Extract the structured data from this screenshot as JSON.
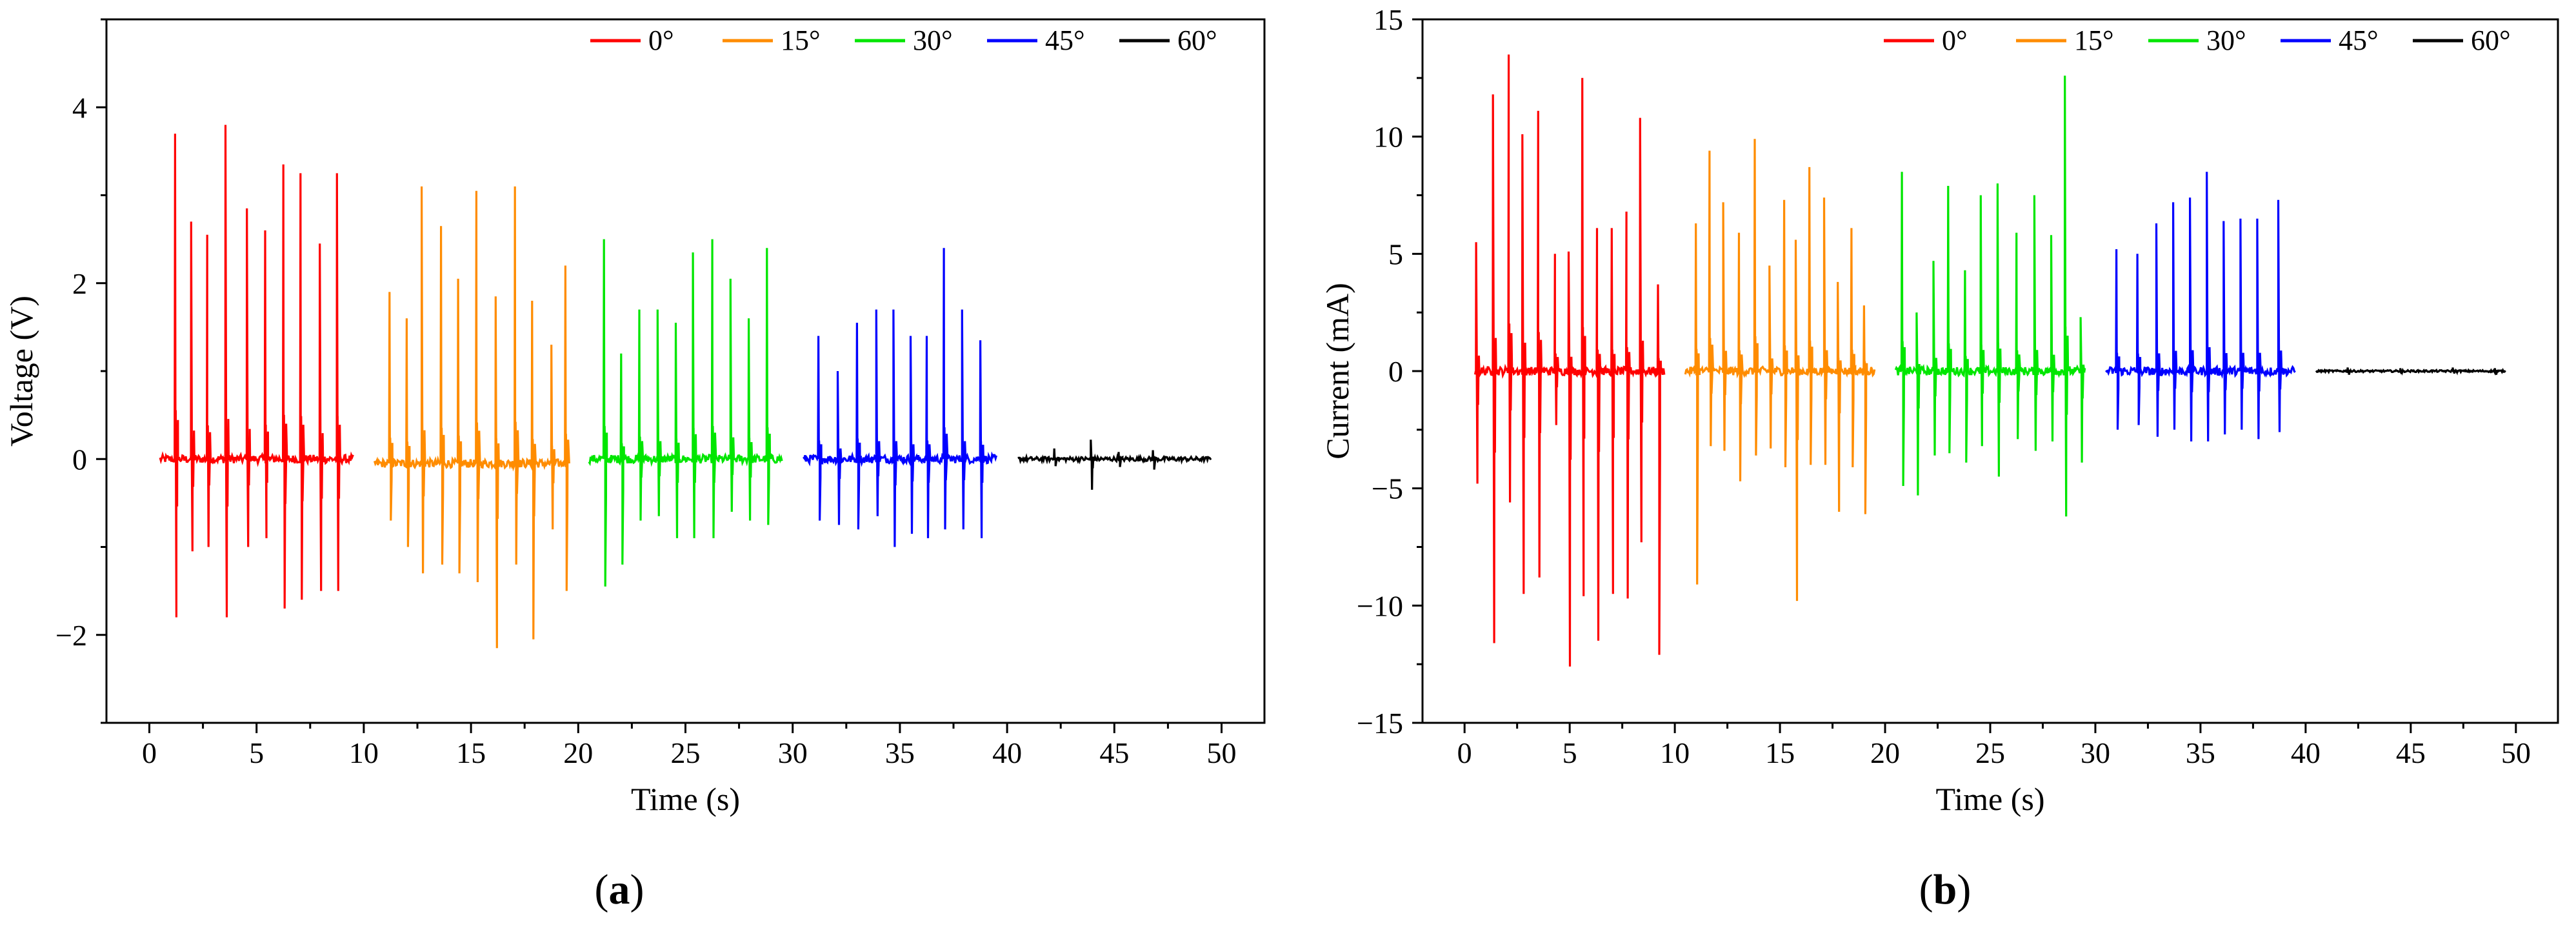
{
  "chart_data": [
    {
      "type": "line",
      "panel_label": "a",
      "caption_open": "(",
      "caption_close": ")",
      "xlabel": "Time (s)",
      "ylabel": "Voltage (V)",
      "xlim": [
        -2,
        52
      ],
      "ylim": [
        -3,
        5
      ],
      "xticks": [
        0,
        5,
        10,
        15,
        20,
        25,
        30,
        35,
        40,
        45,
        50
      ],
      "yticks": [
        -2,
        0,
        2,
        4
      ],
      "ytick_labels": [
        "−2",
        "0",
        "2",
        "4"
      ],
      "legend_position": "top-right",
      "series": [
        {
          "name": "0°",
          "color": "#ff0000",
          "t_start": 0.5,
          "t_end": 9.5,
          "baseline": 0.0,
          "spikes": [
            [
              1.2,
              3.7,
              -1.8
            ],
            [
              1.95,
              2.7,
              -1.05
            ],
            [
              2.7,
              2.55,
              -1.0
            ],
            [
              3.55,
              3.8,
              -1.8
            ],
            [
              4.55,
              2.85,
              -1.0
            ],
            [
              5.4,
              2.6,
              -0.9
            ],
            [
              6.25,
              3.35,
              -1.7
            ],
            [
              7.05,
              3.25,
              -1.6
            ],
            [
              7.95,
              2.45,
              -1.5
            ],
            [
              8.75,
              3.25,
              -1.5
            ]
          ]
        },
        {
          "name": "15°",
          "color": "#ff8c00",
          "t_start": 10.5,
          "t_end": 19.5,
          "baseline": -0.05,
          "spikes": [
            [
              11.2,
              1.9,
              -0.7
            ],
            [
              12.0,
              1.6,
              -1.0
            ],
            [
              12.7,
              3.1,
              -1.3
            ],
            [
              13.6,
              2.65,
              -1.2
            ],
            [
              14.4,
              2.05,
              -1.3
            ],
            [
              15.25,
              3.05,
              -1.4
            ],
            [
              16.15,
              1.85,
              -2.15
            ],
            [
              17.05,
              3.1,
              -1.2
            ],
            [
              17.85,
              1.8,
              -2.05
            ],
            [
              18.75,
              1.3,
              -0.8
            ],
            [
              19.4,
              2.2,
              -1.5
            ]
          ]
        },
        {
          "name": "30°",
          "color": "#00e600",
          "t_start": 20.5,
          "t_end": 29.5,
          "baseline": 0.0,
          "spikes": [
            [
              21.2,
              2.5,
              -1.45
            ],
            [
              22.0,
              1.2,
              -1.2
            ],
            [
              22.85,
              1.7,
              -0.7
            ],
            [
              23.7,
              1.7,
              -0.65
            ],
            [
              24.55,
              1.55,
              -0.9
            ],
            [
              25.35,
              2.35,
              -0.9
            ],
            [
              26.25,
              2.5,
              -0.9
            ],
            [
              27.1,
              2.05,
              -0.6
            ],
            [
              27.95,
              1.6,
              -0.7
            ],
            [
              28.8,
              2.4,
              -0.75
            ]
          ]
        },
        {
          "name": "45°",
          "color": "#0000ff",
          "t_start": 30.5,
          "t_end": 39.5,
          "baseline": 0.0,
          "spikes": [
            [
              31.2,
              1.4,
              -0.7
            ],
            [
              32.1,
              1.0,
              -0.75
            ],
            [
              33.0,
              1.55,
              -0.8
            ],
            [
              33.9,
              1.7,
              -0.65
            ],
            [
              34.7,
              1.7,
              -1.0
            ],
            [
              35.5,
              1.4,
              -0.85
            ],
            [
              36.25,
              1.4,
              -0.9
            ],
            [
              37.05,
              2.4,
              -0.8
            ],
            [
              37.9,
              1.7,
              -0.8
            ],
            [
              38.75,
              1.35,
              -0.9
            ]
          ]
        },
        {
          "name": "60°",
          "color": "#000000",
          "t_start": 40.5,
          "t_end": 49.5,
          "baseline": 0.0,
          "noise": 0.05,
          "spikes": [
            [
              42.2,
              0.12,
              -0.08
            ],
            [
              43.9,
              0.22,
              -0.35
            ],
            [
              45.2,
              0.08,
              -0.09
            ],
            [
              46.8,
              0.1,
              -0.12
            ]
          ]
        }
      ]
    },
    {
      "type": "line",
      "panel_label": "b",
      "caption_open": "(",
      "caption_close": ")",
      "xlabel": "Time (s)",
      "ylabel": "Current (mA)",
      "xlim": [
        -2,
        52
      ],
      "ylim": [
        -15,
        15
      ],
      "xticks": [
        0,
        5,
        10,
        15,
        20,
        25,
        30,
        35,
        40,
        45,
        50
      ],
      "yticks": [
        -15,
        -10,
        -5,
        0,
        5,
        10,
        15
      ],
      "ytick_labels": [
        "−15",
        "−10",
        "−5",
        "0",
        "5",
        "10",
        "15"
      ],
      "legend_position": "top-right",
      "series": [
        {
          "name": "0°",
          "color": "#ff0000",
          "t_start": 0.5,
          "t_end": 9.5,
          "baseline": 0.0,
          "spikes": [
            [
              0.55,
              5.5,
              -4.8
            ],
            [
              1.35,
              11.8,
              -11.6
            ],
            [
              2.1,
              13.5,
              -5.6
            ],
            [
              2.75,
              10.1,
              -9.5
            ],
            [
              3.5,
              11.1,
              -8.8
            ],
            [
              4.3,
              5.0,
              -2.3
            ],
            [
              4.95,
              5.1,
              -12.6
            ],
            [
              5.6,
              12.5,
              -9.6
            ],
            [
              6.3,
              6.1,
              -11.5
            ],
            [
              7.0,
              6.1,
              -9.5
            ],
            [
              7.7,
              6.8,
              -9.7
            ],
            [
              8.35,
              10.8,
              -7.3
            ],
            [
              9.2,
              3.7,
              -12.1
            ]
          ]
        },
        {
          "name": "15°",
          "color": "#ff8c00",
          "t_start": 10.5,
          "t_end": 19.5,
          "baseline": 0.0,
          "spikes": [
            [
              11.0,
              6.3,
              -9.1
            ],
            [
              11.65,
              9.4,
              -3.2
            ],
            [
              12.3,
              7.2,
              -3.4
            ],
            [
              13.05,
              5.9,
              -4.7
            ],
            [
              13.8,
              9.9,
              -3.6
            ],
            [
              14.5,
              4.5,
              -3.3
            ],
            [
              15.2,
              7.3,
              -4.1
            ],
            [
              15.75,
              5.6,
              -9.8
            ],
            [
              16.4,
              8.7,
              -4.0
            ],
            [
              17.1,
              7.4,
              -4.0
            ],
            [
              17.75,
              3.8,
              -6.0
            ],
            [
              18.4,
              6.1,
              -4.1
            ],
            [
              19.0,
              2.8,
              -6.1
            ]
          ]
        },
        {
          "name": "30°",
          "color": "#00e600",
          "t_start": 20.5,
          "t_end": 29.5,
          "baseline": 0.0,
          "spikes": [
            [
              20.8,
              8.5,
              -4.9
            ],
            [
              21.5,
              2.5,
              -5.3
            ],
            [
              22.3,
              4.7,
              -3.6
            ],
            [
              23.0,
              7.9,
              -3.5
            ],
            [
              23.8,
              4.3,
              -3.9
            ],
            [
              24.55,
              7.5,
              -3.2
            ],
            [
              25.35,
              8.0,
              -4.5
            ],
            [
              26.25,
              5.9,
              -2.9
            ],
            [
              27.1,
              7.5,
              -3.4
            ],
            [
              27.9,
              5.8,
              -3.0
            ],
            [
              28.55,
              12.6,
              -6.2
            ],
            [
              29.3,
              2.3,
              -3.9
            ]
          ]
        },
        {
          "name": "45°",
          "color": "#0000ff",
          "t_start": 30.5,
          "t_end": 39.5,
          "baseline": 0.0,
          "spikes": [
            [
              31.0,
              5.2,
              -2.5
            ],
            [
              32.0,
              5.0,
              -2.3
            ],
            [
              32.9,
              6.3,
              -2.8
            ],
            [
              33.7,
              7.2,
              -2.5
            ],
            [
              34.5,
              7.4,
              -3.0
            ],
            [
              35.3,
              8.5,
              -3.0
            ],
            [
              36.1,
              6.4,
              -2.7
            ],
            [
              36.9,
              6.5,
              -2.5
            ],
            [
              37.7,
              6.5,
              -2.9
            ],
            [
              38.7,
              7.3,
              -2.6
            ]
          ]
        },
        {
          "name": "60°",
          "color": "#000000",
          "t_start": 40.5,
          "t_end": 49.5,
          "baseline": 0.0,
          "noise": 0.08,
          "spikes": [
            [
              42.0,
              0.15,
              -0.15
            ],
            [
              44.5,
              0.12,
              -0.12
            ],
            [
              47.0,
              0.15,
              -0.1
            ],
            [
              49.0,
              0.12,
              -0.15
            ]
          ]
        }
      ]
    }
  ]
}
